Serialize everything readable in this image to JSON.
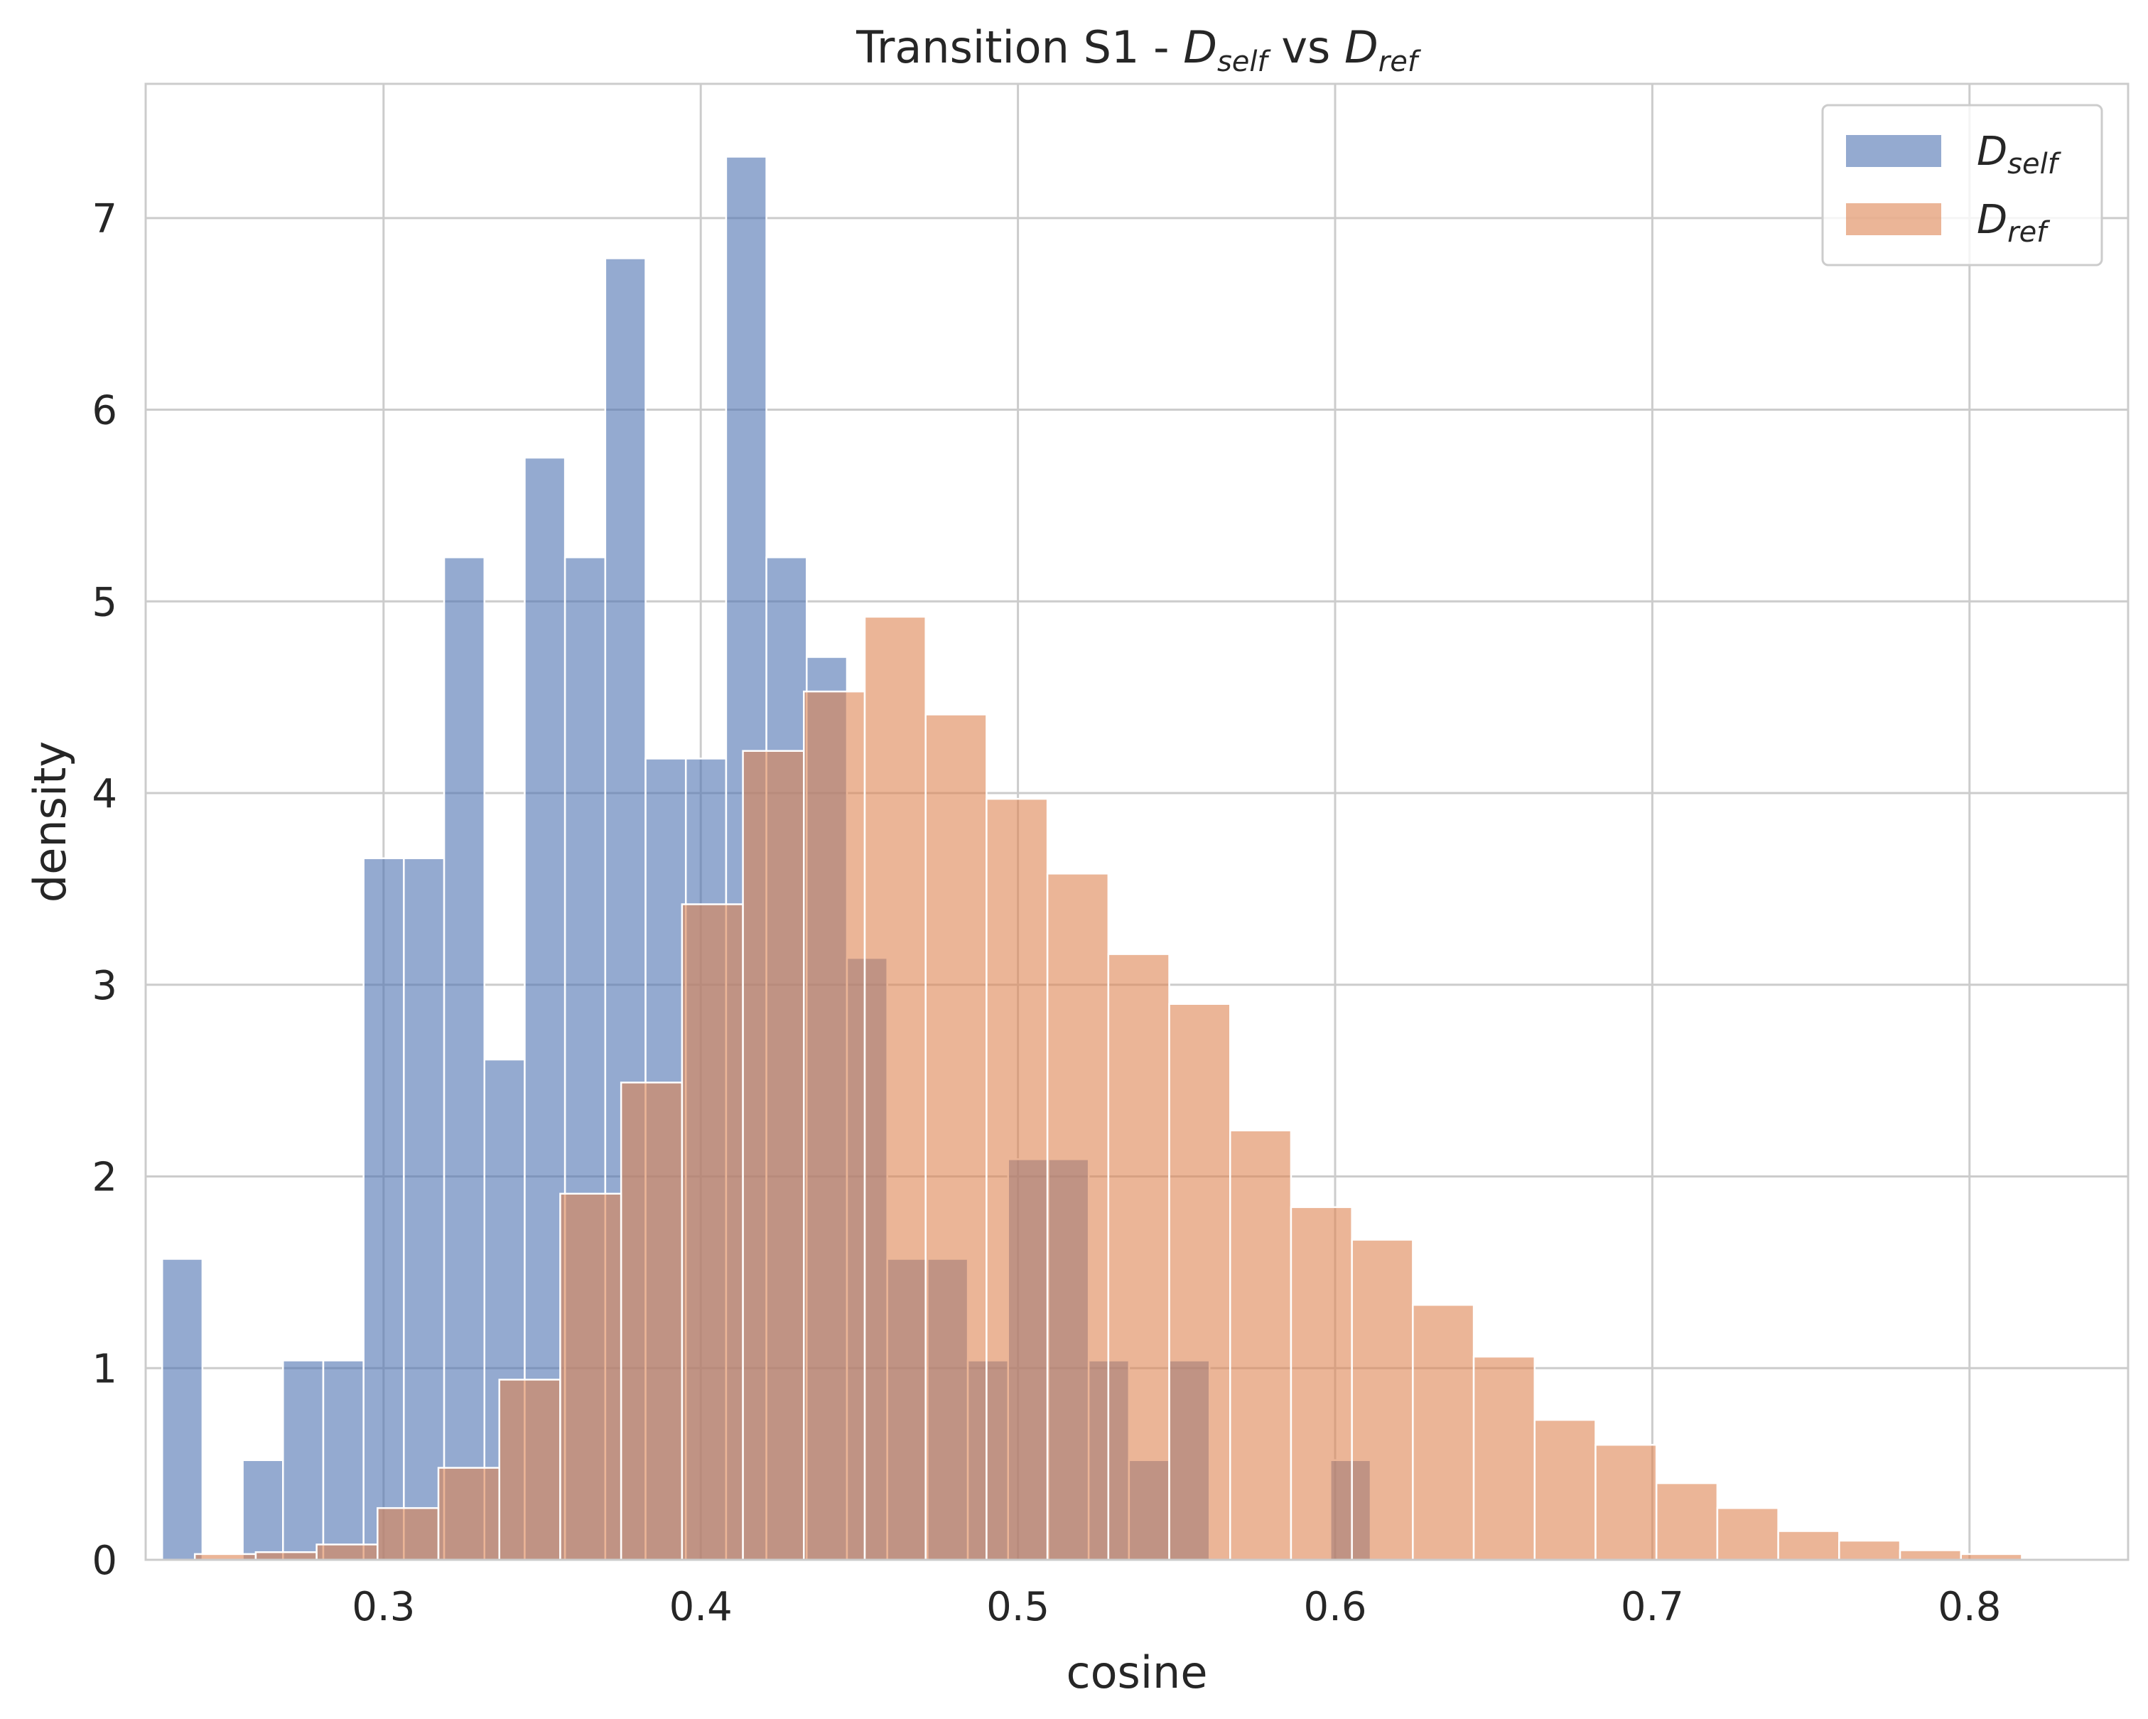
{
  "chart_data": {
    "type": "bar",
    "title": {
      "prefix": "Transition S1 - ",
      "var1_main": "D",
      "var1_sub": "self",
      "middle": " vs ",
      "var2_main": "D",
      "var2_sub": "ref"
    },
    "xlabel": "cosine",
    "ylabel": "density",
    "xlim": [
      0.225,
      0.85
    ],
    "ylim": [
      0,
      7.7
    ],
    "xticks": [
      0.3,
      0.4,
      0.5,
      0.6,
      0.7,
      0.8
    ],
    "xtick_labels": [
      "0.3",
      "0.4",
      "0.5",
      "0.6",
      "0.7",
      "0.8"
    ],
    "yticks": [
      0,
      1,
      2,
      3,
      4,
      5,
      6,
      7
    ],
    "ytick_labels": [
      "0",
      "1",
      "2",
      "3",
      "4",
      "5",
      "6",
      "7"
    ],
    "grid": true,
    "legend_position": "top-right",
    "series": [
      {
        "name_main": "D",
        "name_sub": "self",
        "color": "#4c72b0",
        "opacity": 0.6,
        "bin_edges": [
          0.2302,
          0.2429,
          0.2556,
          0.2683,
          0.281,
          0.2937,
          0.3064,
          0.3191,
          0.3318,
          0.3445,
          0.3572,
          0.3699,
          0.3826,
          0.3953,
          0.408,
          0.4207,
          0.4334,
          0.4461,
          0.4588,
          0.4715,
          0.4842,
          0.4969,
          0.5096,
          0.5223,
          0.535,
          0.5477,
          0.5604,
          0.5731,
          0.5858,
          0.5985,
          0.6112
        ],
        "values": [
          1.57,
          0,
          0.52,
          1.04,
          1.04,
          3.66,
          3.66,
          5.23,
          2.61,
          5.75,
          5.23,
          6.79,
          4.18,
          4.18,
          7.32,
          5.23,
          4.71,
          3.14,
          1.57,
          1.57,
          1.04,
          2.09,
          2.09,
          1.04,
          0.52,
          1.04,
          0,
          0,
          0,
          0.52
        ]
      },
      {
        "name_main": "D",
        "name_sub": "ref",
        "color": "#dd8452",
        "opacity": 0.6,
        "bin_edges": [
          0.2405,
          0.2597,
          0.2789,
          0.2981,
          0.3173,
          0.3365,
          0.3557,
          0.3749,
          0.3941,
          0.4133,
          0.4325,
          0.4517,
          0.4709,
          0.4901,
          0.5093,
          0.5285,
          0.5477,
          0.5669,
          0.5861,
          0.6053,
          0.6245,
          0.6437,
          0.6629,
          0.6821,
          0.7013,
          0.7205,
          0.7397,
          0.7589,
          0.7781,
          0.7973,
          0.8165
        ],
        "values": [
          0.03,
          0.04,
          0.08,
          0.27,
          0.48,
          0.94,
          1.91,
          2.49,
          3.42,
          4.22,
          4.53,
          4.92,
          4.41,
          3.97,
          3.58,
          3.16,
          2.9,
          2.24,
          1.84,
          1.67,
          1.33,
          1.06,
          0.73,
          0.6,
          0.4,
          0.27,
          0.15,
          0.1,
          0.05,
          0.03
        ]
      }
    ]
  }
}
